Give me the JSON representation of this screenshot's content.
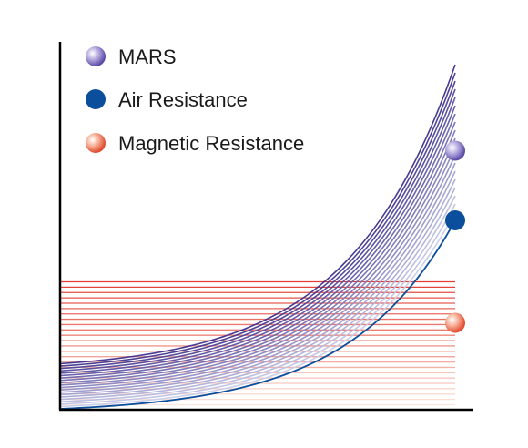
{
  "chart_data": {
    "type": "line",
    "title": "",
    "xlabel": "",
    "ylabel": "",
    "grid": false,
    "legend_position": "top-left",
    "series": [
      {
        "name": "MARS",
        "color": "#4a3f95",
        "note_family": 20,
        "values_top": [
          0.55,
          0.75,
          1.0,
          1.36,
          1.9,
          2.7,
          4.2
        ],
        "end_value": 3.15
      },
      {
        "name": "Air Resistance",
        "color": "#0b4f9c",
        "values": [
          0.0,
          0.12,
          0.32,
          0.6,
          1.0,
          1.55,
          2.3
        ],
        "end_value": 2.3
      },
      {
        "name": "Magnetic Resistance",
        "color": "#e34a33",
        "flat_levels_min": 0.05,
        "flat_levels_max": 1.55,
        "level_count": 24,
        "end_value": 1.05
      }
    ],
    "x": [
      0,
      1,
      2,
      3,
      4,
      5,
      6
    ],
    "xlim": [
      0,
      6
    ],
    "ylim": [
      0,
      4.3
    ]
  },
  "legend": {
    "items": [
      {
        "label": "MARS",
        "icon": "purple-gradient-dot-icon"
      },
      {
        "label": "Air Resistance",
        "icon": "blue-dot-icon"
      },
      {
        "label": "Magnetic Resistance",
        "icon": "orange-gradient-dot-icon"
      }
    ]
  }
}
